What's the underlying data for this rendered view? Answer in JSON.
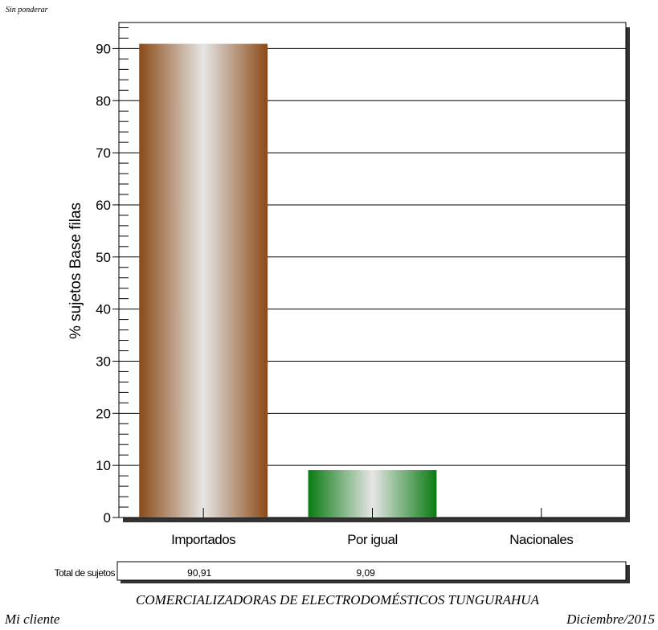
{
  "header_note": "Sin ponderar",
  "footer": {
    "title": "COMERCIALIZADORAS DE ELECTRODOMÉSTICOS TUNGURAHUA",
    "client": "Mi cliente",
    "date": "Diciembre/2015"
  },
  "totals_row": {
    "label": "Total de sujetos",
    "values": [
      "90,91",
      "9,09",
      ""
    ]
  },
  "chart_data": {
    "type": "bar",
    "title": "",
    "xlabel": "",
    "ylabel": "% sujetos Base filas",
    "categories": [
      "Importados",
      "Por igual",
      "Nacionales"
    ],
    "values": [
      90.91,
      9.09,
      0
    ],
    "ylim": [
      0,
      95
    ],
    "yticks": [
      0,
      10,
      20,
      30,
      40,
      50,
      60,
      70,
      80,
      90
    ],
    "grid": true,
    "legend": "none",
    "bar_colors": [
      {
        "edge": "#8b4a17",
        "mid": "#e6e6e6"
      },
      {
        "edge": "#0a7a12",
        "mid": "#e6e6e6"
      },
      {
        "edge": "#888888",
        "mid": "#e6e6e6"
      }
    ]
  }
}
